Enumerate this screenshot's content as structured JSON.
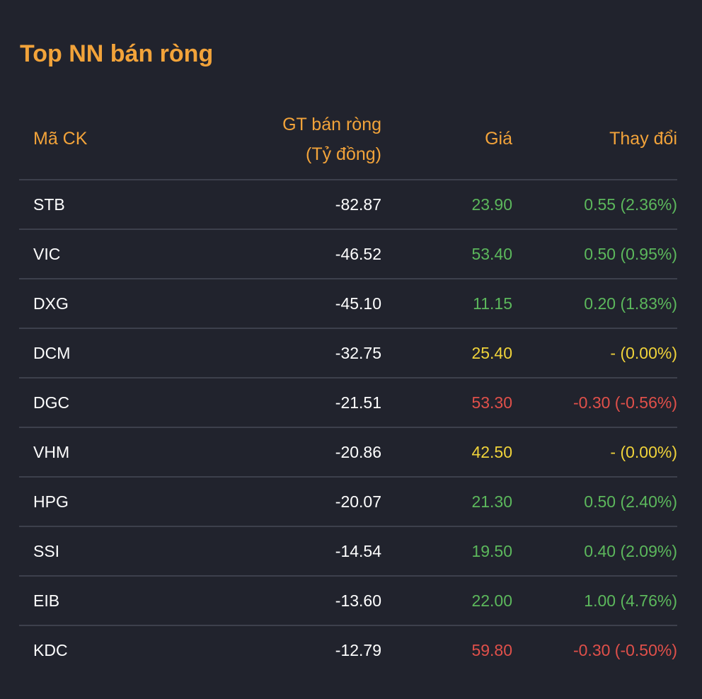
{
  "title": "Top NN bán ròng",
  "headers": {
    "code": "Mã CK",
    "value_line1": "GT bán ròng",
    "value_line2": "(Tỷ đồng)",
    "price": "Giá",
    "change": "Thay đổi"
  },
  "colors": {
    "accent": "#f2a33a",
    "up": "#5cb85c",
    "flat": "#f0d33a",
    "down": "#e0504a",
    "background": "#21232d"
  },
  "rows": [
    {
      "code": "STB",
      "value": "-82.87",
      "price": "23.90",
      "change": "0.55 (2.36%)",
      "trend": "up"
    },
    {
      "code": "VIC",
      "value": "-46.52",
      "price": "53.40",
      "change": "0.50 (0.95%)",
      "trend": "up"
    },
    {
      "code": "DXG",
      "value": "-45.10",
      "price": "11.15",
      "change": "0.20 (1.83%)",
      "trend": "up"
    },
    {
      "code": "DCM",
      "value": "-32.75",
      "price": "25.40",
      "change": "- (0.00%)",
      "trend": "flat"
    },
    {
      "code": "DGC",
      "value": "-21.51",
      "price": "53.30",
      "change": "-0.30 (-0.56%)",
      "trend": "down"
    },
    {
      "code": "VHM",
      "value": "-20.86",
      "price": "42.50",
      "change": "- (0.00%)",
      "trend": "flat"
    },
    {
      "code": "HPG",
      "value": "-20.07",
      "price": "21.30",
      "change": "0.50 (2.40%)",
      "trend": "up"
    },
    {
      "code": "SSI",
      "value": "-14.54",
      "price": "19.50",
      "change": "0.40 (2.09%)",
      "trend": "up"
    },
    {
      "code": "EIB",
      "value": "-13.60",
      "price": "22.00",
      "change": "1.00 (4.76%)",
      "trend": "up"
    },
    {
      "code": "KDC",
      "value": "-12.79",
      "price": "59.80",
      "change": "-0.30 (-0.50%)",
      "trend": "down"
    }
  ]
}
